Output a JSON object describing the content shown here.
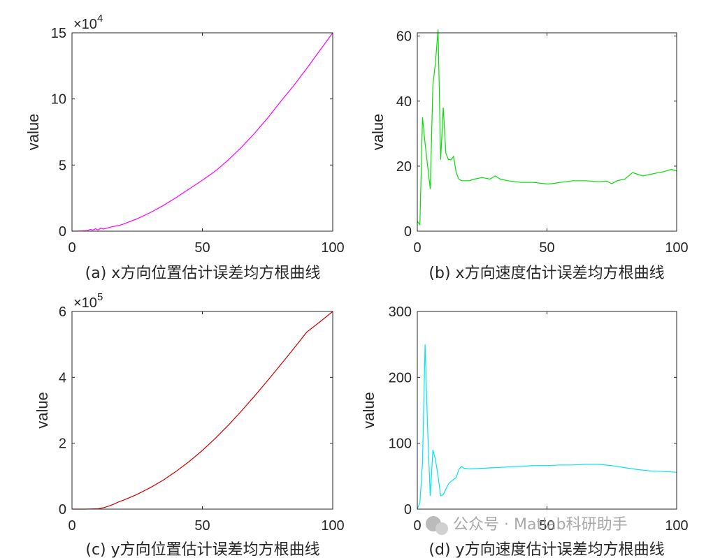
{
  "watermark": {
    "text": "公众号 · Matlab科研助手",
    "icon": "wechat-icon"
  },
  "chart_data": [
    {
      "type": "line",
      "caption": "(a) x方向位置估计误差均方根曲线",
      "ylabel": "value",
      "xlim": [
        0,
        100
      ],
      "ylim": [
        0,
        150000
      ],
      "exponent_label": "×10",
      "exponent": "4",
      "x_ticks": [
        "0",
        "50",
        "100"
      ],
      "y_ticks": [
        "0",
        "5",
        "10",
        "15"
      ],
      "y_tick_values": [
        0,
        50000,
        100000,
        150000
      ],
      "color": "#ff00ff",
      "series": [
        {
          "x": [
            0,
            2,
            4,
            6,
            7,
            8,
            9,
            10,
            11,
            12,
            13,
            14,
            15,
            16,
            18,
            20,
            25,
            30,
            35,
            40,
            45,
            50,
            55,
            60,
            65,
            70,
            75,
            80,
            85,
            90,
            95,
            100
          ],
          "values": [
            0,
            100,
            200,
            400,
            1300,
            800,
            1800,
            900,
            2300,
            1600,
            2100,
            2700,
            3200,
            3600,
            4300,
            5600,
            9400,
            14000,
            19400,
            25500,
            32000,
            38500,
            45500,
            54000,
            63500,
            74000,
            85500,
            98000,
            110000,
            123000,
            136500,
            150000
          ]
        }
      ]
    },
    {
      "type": "line",
      "caption": "(b) x方向速度估计误差均方根曲线",
      "ylabel": "value",
      "xlim": [
        0,
        100
      ],
      "ylim": [
        0,
        61
      ],
      "x_ticks": [
        "0",
        "50",
        "100"
      ],
      "y_ticks": [
        "0",
        "20",
        "40",
        "60"
      ],
      "y_tick_values": [
        0,
        20,
        40,
        60
      ],
      "color": "#00e000",
      "series": [
        {
          "x": [
            0,
            1,
            2,
            3,
            4,
            5,
            6,
            7,
            8,
            9,
            10,
            11,
            12,
            13,
            14,
            15,
            16,
            17,
            18,
            20,
            22,
            25,
            28,
            30,
            32,
            35,
            40,
            45,
            50,
            52,
            55,
            60,
            65,
            70,
            73,
            75,
            77,
            80,
            83,
            85,
            87,
            90,
            93,
            95,
            98,
            100
          ],
          "values": [
            3,
            2,
            35,
            27,
            20,
            13,
            45,
            52,
            62,
            22,
            38,
            24,
            22,
            22,
            23,
            18,
            16,
            15.5,
            15.5,
            15.5,
            16,
            16.5,
            16,
            17,
            16,
            15.5,
            15,
            15,
            14.5,
            14.6,
            15,
            15.5,
            15.5,
            15.2,
            15.4,
            14.6,
            15.5,
            16,
            18,
            17.5,
            17,
            17.5,
            18,
            18.3,
            19,
            18.5
          ]
        }
      ]
    },
    {
      "type": "line",
      "caption": "(c) y方向位置估计误差均方根曲线",
      "ylabel": "value",
      "xlim": [
        0,
        100
      ],
      "ylim": [
        0,
        600000
      ],
      "exponent_label": "×10",
      "exponent": "5",
      "x_ticks": [
        "0",
        "50",
        "100"
      ],
      "y_ticks": [
        "0",
        "2",
        "4",
        "6"
      ],
      "y_tick_values": [
        0,
        200000,
        400000,
        600000
      ],
      "color": "#d00000",
      "series": [
        {
          "x": [
            0,
            5,
            10,
            12,
            14,
            16,
            18,
            20,
            25,
            30,
            35,
            40,
            45,
            50,
            55,
            60,
            65,
            70,
            75,
            80,
            85,
            90,
            95,
            100
          ],
          "values": [
            0,
            0,
            1000,
            4000,
            9000,
            15000,
            22000,
            28000,
            45000,
            65000,
            88000,
            115000,
            145000,
            178000,
            215000,
            255000,
            298000,
            343000,
            390000,
            438000,
            487000,
            537000,
            568000,
            600000
          ]
        }
      ]
    },
    {
      "type": "line",
      "caption": "(d) y方向速度估计误差均方根曲线",
      "ylabel": "value",
      "xlim": [
        0,
        100
      ],
      "ylim": [
        0,
        300
      ],
      "x_ticks": [
        "0",
        "50",
        "100"
      ],
      "y_ticks": [
        "0",
        "100",
        "200",
        "300"
      ],
      "y_tick_values": [
        0,
        100,
        200,
        300
      ],
      "color": "#00e5ee",
      "series": [
        {
          "x": [
            0,
            1,
            2,
            3,
            4,
            5,
            6,
            7,
            8,
            9,
            10,
            11,
            12,
            13,
            14,
            15,
            16,
            17,
            18,
            20,
            25,
            30,
            35,
            40,
            45,
            50,
            55,
            60,
            65,
            70,
            75,
            80,
            85,
            90,
            95,
            100
          ],
          "values": [
            0,
            10,
            70,
            250,
            120,
            20,
            90,
            75,
            50,
            20,
            22,
            30,
            38,
            42,
            45,
            48,
            60,
            65,
            62,
            61,
            62,
            63,
            64,
            65,
            66,
            66,
            67,
            67,
            68,
            68,
            66,
            63,
            60,
            58,
            57,
            56
          ]
        }
      ]
    }
  ]
}
